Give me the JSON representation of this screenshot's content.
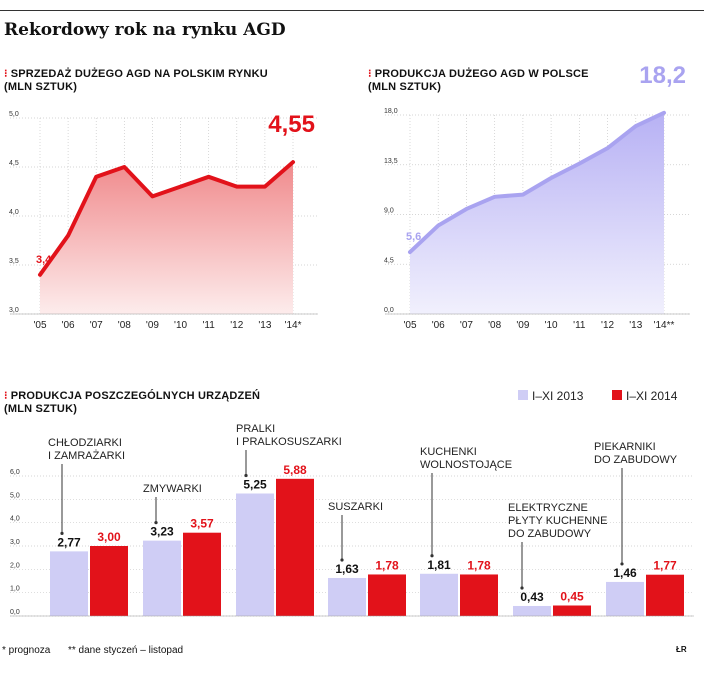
{
  "page": {
    "title": "Rekordowy rok na rynku AGD",
    "bullet": "⁝",
    "footnote_1": "* prognoza",
    "footnote_2": "** dane styczeń – listopad",
    "credit": "ŁR"
  },
  "chart_data": [
    {
      "type": "area",
      "title": "SPRZEDAŻ DUŻEGO AGD NA POLSKIM RYNKU",
      "subtitle": "(MLN SZTUK)",
      "categories": [
        "'05",
        "'06",
        "'07",
        "'08",
        "'09",
        "'10",
        "'11",
        "'12",
        "'13",
        "'14*"
      ],
      "values": [
        3.4,
        3.8,
        4.4,
        4.5,
        4.2,
        4.3,
        4.4,
        4.3,
        4.3,
        4.55
      ],
      "yticks": [
        "3,0",
        "3,5",
        "4,0",
        "4,5",
        "5,0"
      ],
      "ylim": [
        3.0,
        5.0
      ],
      "annotations": {
        "first": "3,4",
        "last": "4,55"
      },
      "color": "#e2121a",
      "grid": true
    },
    {
      "type": "area",
      "title": "PRODUKCJA DUŻEGO AGD W POLSCE",
      "subtitle": "(MLN SZTUK)",
      "categories": [
        "'05",
        "'06",
        "'07",
        "'08",
        "'09",
        "'10",
        "'11",
        "'12",
        "'13",
        "'14**"
      ],
      "values": [
        5.6,
        8.0,
        9.5,
        10.6,
        10.8,
        12.3,
        13.6,
        15.0,
        17.0,
        18.2
      ],
      "yticks": [
        "0,0",
        "4,5",
        "9,0",
        "13,5",
        "18,0"
      ],
      "ylim": [
        0,
        18
      ],
      "annotations": {
        "first": "5,6",
        "last": "18,2"
      },
      "color": "#a9a3f0",
      "grid": true
    },
    {
      "type": "bar",
      "title": "PRODUKCJA POSZCZEGÓLNYCH URZĄDZEŃ",
      "subtitle": "(MLN SZTUK)",
      "yticks": [
        "0,0",
        "1,0",
        "2,0",
        "3,0",
        "4,0",
        "5,0",
        "6,0"
      ],
      "ylim": [
        0,
        6
      ],
      "legend": [
        "I–XI 2013",
        "I–XI 2014"
      ],
      "colors": [
        "#cfcdf5",
        "#e2121a"
      ],
      "categories": [
        [
          "CHŁODZIARKI",
          "I ZAMRAŻARKI"
        ],
        [
          "ZMYWARKI"
        ],
        [
          "PRALKI",
          "I PRALKOSUSZARKI"
        ],
        [
          "SUSZARKI"
        ],
        [
          "KUCHENKI",
          "WOLNOSTOJĄCE"
        ],
        [
          "ELEKTRYCZNE",
          "PŁYTY KUCHENNE",
          "DO ZABUDOWY"
        ],
        [
          "PIEKARNIKI",
          "DO ZABUDOWY"
        ]
      ],
      "series": [
        {
          "name": "I–XI 2013",
          "values": [
            2.77,
            3.23,
            5.25,
            1.63,
            1.81,
            0.43,
            1.46
          ],
          "labels": [
            "2,77",
            "3,23",
            "5,25",
            "1,63",
            "1,81",
            "0,43",
            "1,46"
          ]
        },
        {
          "name": "I–XI 2014",
          "values": [
            3.0,
            3.57,
            5.88,
            1.78,
            1.78,
            0.45,
            1.77
          ],
          "labels": [
            "3,00",
            "3,57",
            "5,88",
            "1,78",
            "1,78",
            "0,45",
            "1,77"
          ]
        }
      ]
    }
  ]
}
